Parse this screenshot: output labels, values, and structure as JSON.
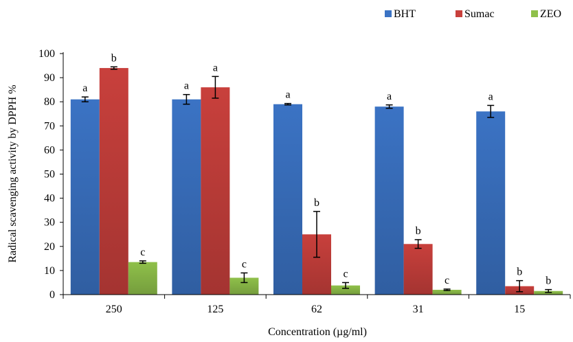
{
  "chart_data": {
    "type": "bar",
    "title": "",
    "xlabel": "Concentration (µg/ml)",
    "ylabel": "Radical scavenging activity by DPPH %",
    "categories": [
      "250",
      "125",
      "62",
      "31",
      "15"
    ],
    "ylim": [
      0,
      100
    ],
    "yticks": [
      0,
      10,
      20,
      30,
      40,
      50,
      60,
      70,
      80,
      90,
      100
    ],
    "grid": false,
    "legend_position": "top-right",
    "series": [
      {
        "name": "BHT",
        "color": "#3b73c4",
        "values": [
          81,
          81,
          79,
          78,
          76
        ],
        "errors": [
          1,
          2,
          0.3,
          0.7,
          2.5
        ],
        "labels": [
          "a",
          "a",
          "a",
          "a",
          "a"
        ]
      },
      {
        "name": "Sumac",
        "color": "#c8403c",
        "values": [
          94,
          86,
          25,
          21,
          3.5
        ],
        "errors": [
          0.5,
          4.5,
          9.5,
          1.8,
          2.3
        ],
        "labels": [
          "b",
          "a",
          "b",
          "b",
          "b"
        ]
      },
      {
        "name": "ZEO",
        "color": "#8fc04a",
        "values": [
          13.5,
          7,
          3.8,
          2,
          1.5
        ],
        "errors": [
          0.5,
          2,
          1.2,
          0.3,
          0.6
        ],
        "labels": [
          "c",
          "c",
          "c",
          "c",
          "b"
        ]
      }
    ]
  }
}
